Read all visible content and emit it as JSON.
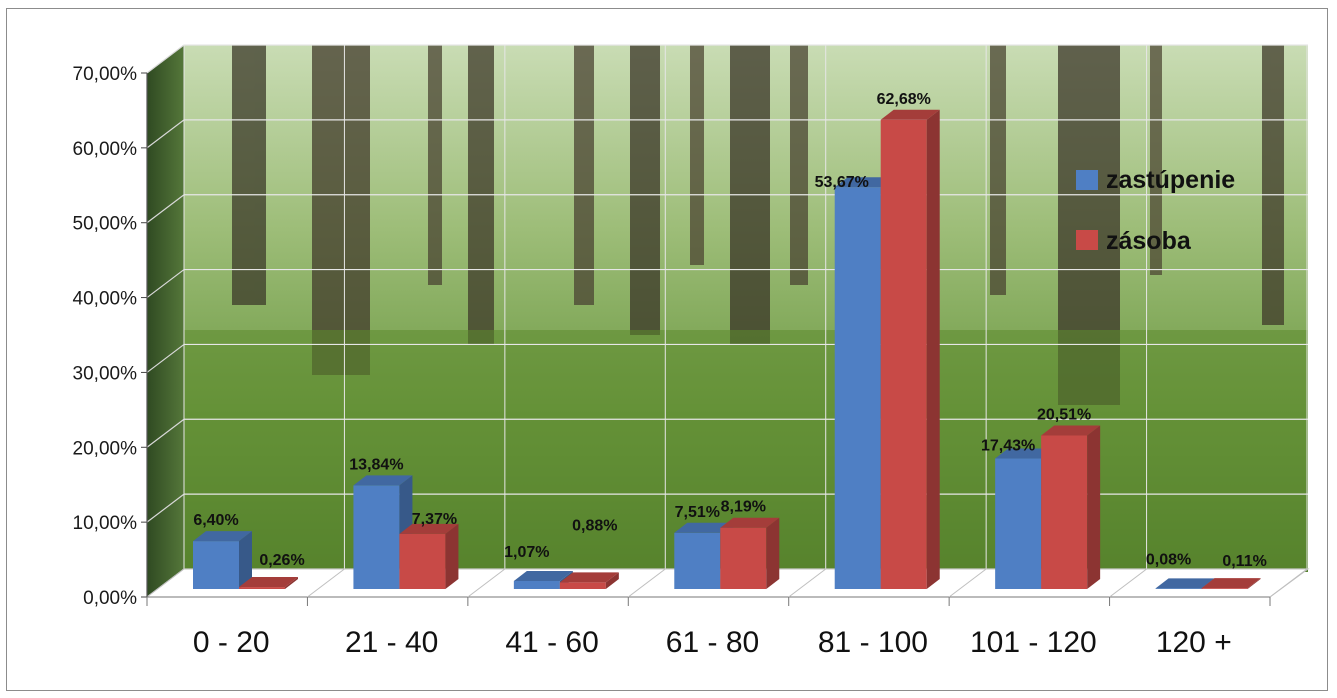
{
  "chart_data": {
    "type": "bar",
    "categories": [
      "0 - 20",
      "21 - 40",
      "41 - 60",
      "61 - 80",
      "81 - 100",
      "101 - 120",
      "120 +"
    ],
    "series": [
      {
        "name": "zastúpenie",
        "color": "#4f7fc4",
        "values": [
          6.4,
          13.84,
          1.07,
          7.51,
          53.67,
          17.43,
          0.08
        ],
        "labels": [
          "6,40%",
          "13,84%",
          "1,07%",
          "7,51%",
          "53,67%",
          "17,43%",
          "0,08%"
        ]
      },
      {
        "name": "zásoba",
        "color": "#c84a47",
        "values": [
          0.26,
          7.37,
          0.88,
          8.19,
          62.68,
          20.51,
          0.11
        ],
        "labels": [
          "0,26%",
          "7,37%",
          "0,88%",
          "8,19%",
          "62,68%",
          "20,51%",
          "0,11%"
        ]
      }
    ],
    "yticks": [
      "0,00%",
      "10,00%",
      "20,00%",
      "30,00%",
      "40,00%",
      "50,00%",
      "60,00%",
      "70,00%"
    ],
    "ylim": [
      0,
      70
    ],
    "grid": true,
    "legend": "right",
    "style": "3d-clustered-column",
    "background": "forest-photo"
  }
}
